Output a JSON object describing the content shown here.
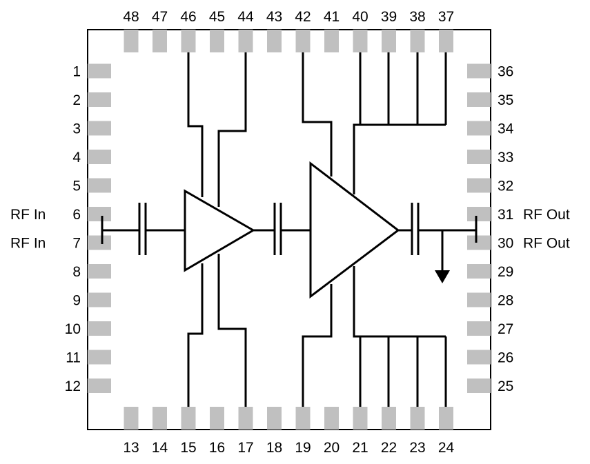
{
  "top_pins": [
    "48",
    "47",
    "46",
    "45",
    "44",
    "43",
    "42",
    "41",
    "40",
    "39",
    "38",
    "37"
  ],
  "bottom_pins": [
    "13",
    "14",
    "15",
    "16",
    "17",
    "18",
    "19",
    "20",
    "21",
    "22",
    "23",
    "24"
  ],
  "left_pins": [
    "1",
    "2",
    "3",
    "4",
    "5",
    "6",
    "7",
    "8",
    "9",
    "10",
    "11",
    "12"
  ],
  "right_pins": [
    "36",
    "35",
    "34",
    "33",
    "32",
    "31",
    "30",
    "29",
    "28",
    "27",
    "26",
    "25"
  ],
  "left_labels": {
    "6": "RF In",
    "7": "RF In"
  },
  "right_labels": {
    "31": "RF Out",
    "30": "RF Out"
  },
  "colors": {
    "pad": "#c0c0c0",
    "line": "#000000"
  }
}
